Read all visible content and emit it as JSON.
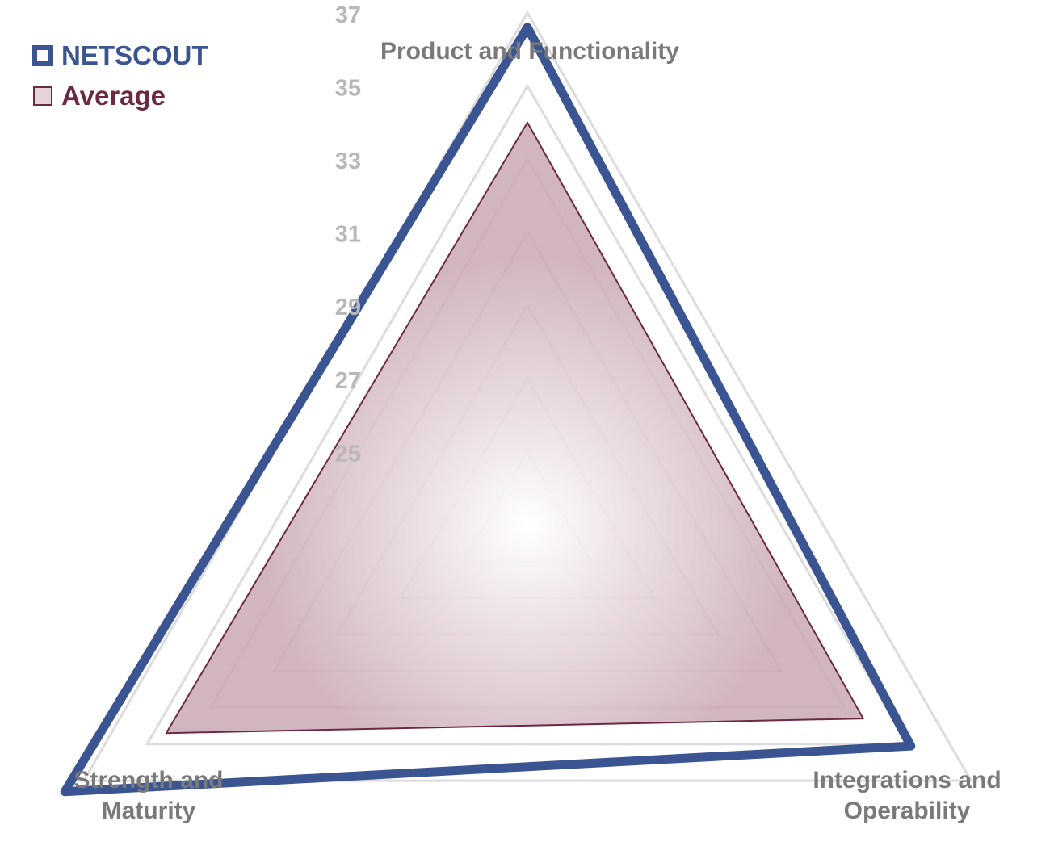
{
  "chart_data": {
    "type": "radar",
    "axes": [
      "Product and Functionality",
      "Integrations and Operability",
      "Strength and Maturity"
    ],
    "axis_label_lines": [
      [
        "Product and Functionality"
      ],
      [
        "Integrations and",
        "Operability"
      ],
      [
        "Strength and",
        "Maturity"
      ]
    ],
    "ticks": [
      "25",
      "27",
      "29",
      "31",
      "33",
      "35",
      "37"
    ],
    "tick_values": [
      25,
      27,
      29,
      31,
      33,
      35,
      37
    ],
    "rlim": [
      23,
      38
    ],
    "grid_values": [
      25,
      27,
      29,
      31,
      33,
      35,
      37
    ],
    "series": [
      {
        "name": "NETSCOUT",
        "values": [
          36.6,
          35.1,
          37.6
        ],
        "color": "#3b5592",
        "fill": "none"
      },
      {
        "name": "Average",
        "values": [
          34.0,
          33.6,
          34.4
        ],
        "color": "#6b2942",
        "fill": "#c9a9b6"
      }
    ],
    "legend_position": "top-left",
    "grid": true
  },
  "colors": {
    "grid": "#dcdcdc",
    "tick_label": "#b8b8b8",
    "axis_label": "#7a7a7a"
  }
}
